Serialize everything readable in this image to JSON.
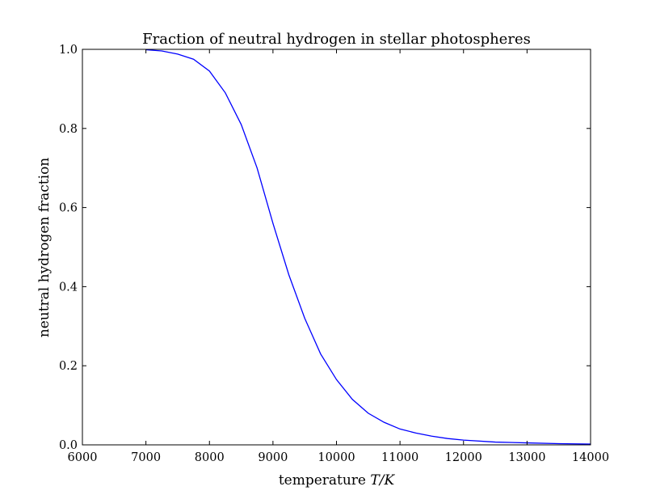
{
  "chart_data": {
    "type": "line",
    "title": "Fraction of neutral hydrogen in stellar photospheres",
    "xlabel_text": "temperature ",
    "xlabel_math": "T/K",
    "ylabel": "neutral hydrogen fraction",
    "xlim": [
      6000,
      14000
    ],
    "ylim": [
      0.0,
      1.0
    ],
    "xticks": [
      "6000",
      "7000",
      "8000",
      "9000",
      "10000",
      "11000",
      "12000",
      "13000",
      "14000"
    ],
    "yticks": [
      "0.0",
      "0.2",
      "0.4",
      "0.6",
      "0.8",
      "1.0"
    ],
    "grid": false,
    "series": [
      {
        "color": "#0000ff",
        "x": [
          7000,
          7250,
          7500,
          7750,
          8000,
          8250,
          8500,
          8750,
          9000,
          9250,
          9500,
          9750,
          10000,
          10250,
          10500,
          10750,
          11000,
          11250,
          11500,
          11750,
          12000,
          12500,
          13000,
          13500,
          14000
        ],
        "y": [
          0.999,
          0.996,
          0.988,
          0.975,
          0.945,
          0.89,
          0.81,
          0.7,
          0.56,
          0.43,
          0.32,
          0.23,
          0.165,
          0.115,
          0.08,
          0.057,
          0.04,
          0.03,
          0.022,
          0.016,
          0.012,
          0.007,
          0.005,
          0.003,
          0.002
        ]
      }
    ]
  }
}
